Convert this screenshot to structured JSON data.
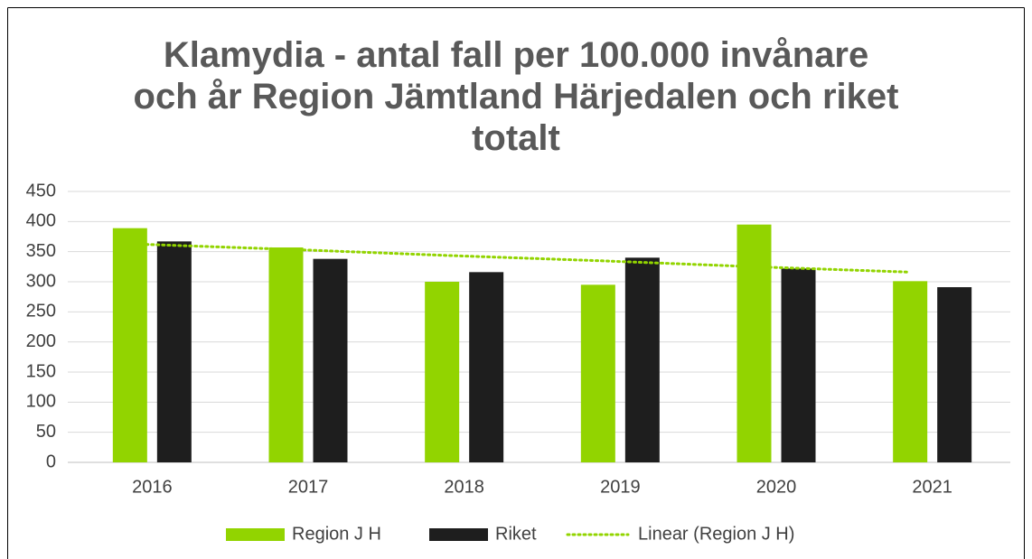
{
  "chart_data": {
    "type": "bar",
    "title": "Klamydia - antal fall per 100.000 invånare och år Region Jämtland Härjedalen och riket totalt",
    "categories": [
      "2016",
      "2017",
      "2018",
      "2019",
      "2020",
      "2021"
    ],
    "series": [
      {
        "name": "Region J H",
        "color": "#92d400",
        "values": [
          389,
          357,
          300,
          295,
          395,
          301
        ]
      },
      {
        "name": "Riket",
        "color": "#1e1e1e",
        "values": [
          367,
          338,
          316,
          340,
          322,
          291
        ]
      }
    ],
    "trendline": {
      "name": "Linear (Region J H)",
      "color": "#92d400",
      "values": [
        363,
        354,
        344,
        335,
        325,
        316
      ]
    },
    "ylim": [
      0,
      450
    ],
    "yticks": [
      0,
      50,
      100,
      150,
      200,
      250,
      300,
      350,
      400,
      450
    ],
    "grid": true,
    "legend": "bottom"
  }
}
